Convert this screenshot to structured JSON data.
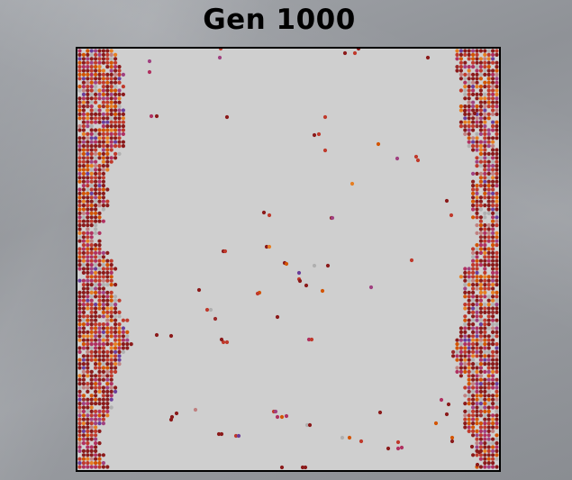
{
  "header": {
    "title": "Gen 1000"
  },
  "simulation": {
    "generation": 1000,
    "colors": {
      "background": "#cfcfcf",
      "border": "#000000",
      "agent_palette": [
        "#8b1a1a",
        "#c0392b",
        "#b03060",
        "#d35400",
        "#e67e22",
        "#a04080",
        "#6a3d9a",
        "#b0b0b0",
        "#c08080",
        "#9a2a2a"
      ]
    }
  }
}
